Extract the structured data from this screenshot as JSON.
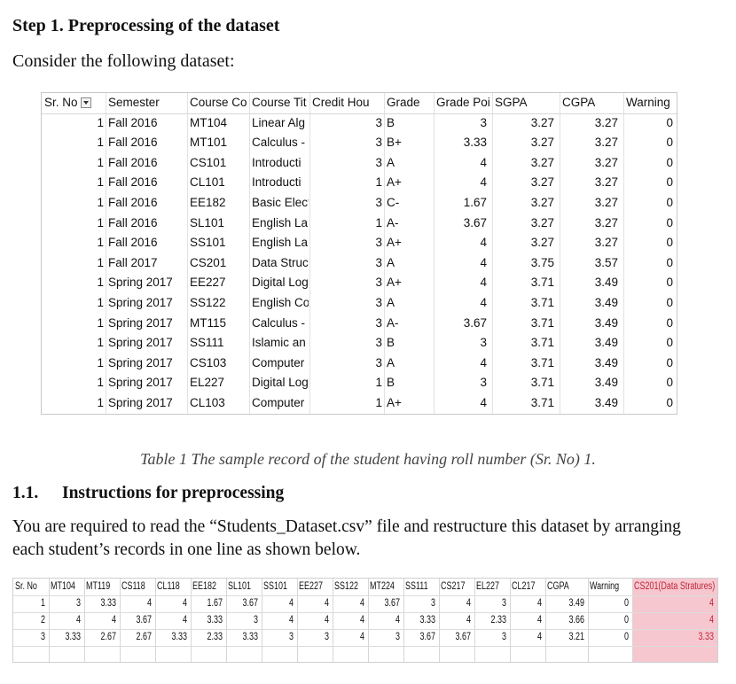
{
  "heading_step": "Step 1. Preprocessing of the dataset",
  "intro": "Consider the following dataset:",
  "table1": {
    "headers": [
      "Sr. No",
      "Semester",
      "Course Co",
      "Course Tit",
      "Credit Hou",
      "Grade",
      "Grade Poi",
      "SGPA",
      "CGPA",
      "Warning"
    ],
    "rows": [
      [
        "1",
        "Fall 2016",
        "MT104",
        "Linear Alg",
        "3",
        "B",
        "3",
        "3.27",
        "3.27",
        "0"
      ],
      [
        "1",
        "Fall 2016",
        "MT101",
        "Calculus -",
        "3",
        "B+",
        "3.33",
        "3.27",
        "3.27",
        "0"
      ],
      [
        "1",
        "Fall 2016",
        "CS101",
        "Introducti",
        "3",
        "A",
        "4",
        "3.27",
        "3.27",
        "0"
      ],
      [
        "1",
        "Fall 2016",
        "CL101",
        "Introducti",
        "1",
        "A+",
        "4",
        "3.27",
        "3.27",
        "0"
      ],
      [
        "1",
        "Fall 2016",
        "EE182",
        "Basic Elect",
        "3",
        "C-",
        "1.67",
        "3.27",
        "3.27",
        "0"
      ],
      [
        "1",
        "Fall 2016",
        "SL101",
        "English La",
        "1",
        "A-",
        "3.67",
        "3.27",
        "3.27",
        "0"
      ],
      [
        "1",
        "Fall 2016",
        "SS101",
        "English La",
        "3",
        "A+",
        "4",
        "3.27",
        "3.27",
        "0"
      ],
      [
        "1",
        "Fall 2017",
        "CS201",
        "Data Struc",
        "3",
        "A",
        "4",
        "3.75",
        "3.57",
        "0"
      ],
      [
        "1",
        "Spring 2017",
        "EE227",
        "Digital Log",
        "3",
        "A+",
        "4",
        "3.71",
        "3.49",
        "0"
      ],
      [
        "1",
        "Spring 2017",
        "SS122",
        "English Co",
        "3",
        "A",
        "4",
        "3.71",
        "3.49",
        "0"
      ],
      [
        "1",
        "Spring 2017",
        "MT115",
        "Calculus -",
        "3",
        "A-",
        "3.67",
        "3.71",
        "3.49",
        "0"
      ],
      [
        "1",
        "Spring 2017",
        "SS111",
        "Islamic an",
        "3",
        "B",
        "3",
        "3.71",
        "3.49",
        "0"
      ],
      [
        "1",
        "Spring 2017",
        "CS103",
        "Computer",
        "3",
        "A",
        "4",
        "3.71",
        "3.49",
        "0"
      ],
      [
        "1",
        "Spring 2017",
        "EL227",
        "Digital Log",
        "1",
        "B",
        "3",
        "3.71",
        "3.49",
        "0"
      ],
      [
        "1",
        "Spring 2017",
        "CL103",
        "Computer",
        "1",
        "A+",
        "4",
        "3.71",
        "3.49",
        "0"
      ]
    ]
  },
  "caption": "Table 1 The sample record of the student having roll number (Sr. No) 1.",
  "section": {
    "number": "1.1.",
    "title": "Instructions for preprocessing"
  },
  "instructions_line1": "You are required to read the “Students_Dataset.csv” file and restructure this dataset by arranging",
  "instructions_line2": "each student’s records in one line as shown below.",
  "table2": {
    "headers": [
      "Sr. No",
      "MT104",
      "MT119",
      "CS118",
      "CL118",
      "EE182",
      "SL101",
      "SS101",
      "EE227",
      "SS122",
      "MT224",
      "SS111",
      "CS217",
      "EL227",
      "CL217",
      "CGPA",
      "Warning",
      "CS201(Data Stratures)"
    ],
    "rows": [
      [
        "1",
        "3",
        "3.33",
        "4",
        "4",
        "1.67",
        "3.67",
        "4",
        "4",
        "4",
        "3.67",
        "3",
        "4",
        "3",
        "4",
        "3.49",
        "0",
        "4"
      ],
      [
        "2",
        "4",
        "4",
        "3.67",
        "4",
        "3.33",
        "3",
        "4",
        "4",
        "4",
        "4",
        "3.33",
        "4",
        "2.33",
        "4",
        "3.66",
        "0",
        "4"
      ],
      [
        "3",
        "3.33",
        "2.67",
        "2.67",
        "3.33",
        "2.33",
        "3.33",
        "3",
        "3",
        "4",
        "3",
        "3.67",
        "3.67",
        "3",
        "4",
        "3.21",
        "0",
        "3.33"
      ]
    ]
  },
  "colors": {
    "highlight": "#f6c7cf",
    "gridline": "#e2e2e2"
  },
  "icons": {
    "filter": "filter-dropdown-icon"
  }
}
